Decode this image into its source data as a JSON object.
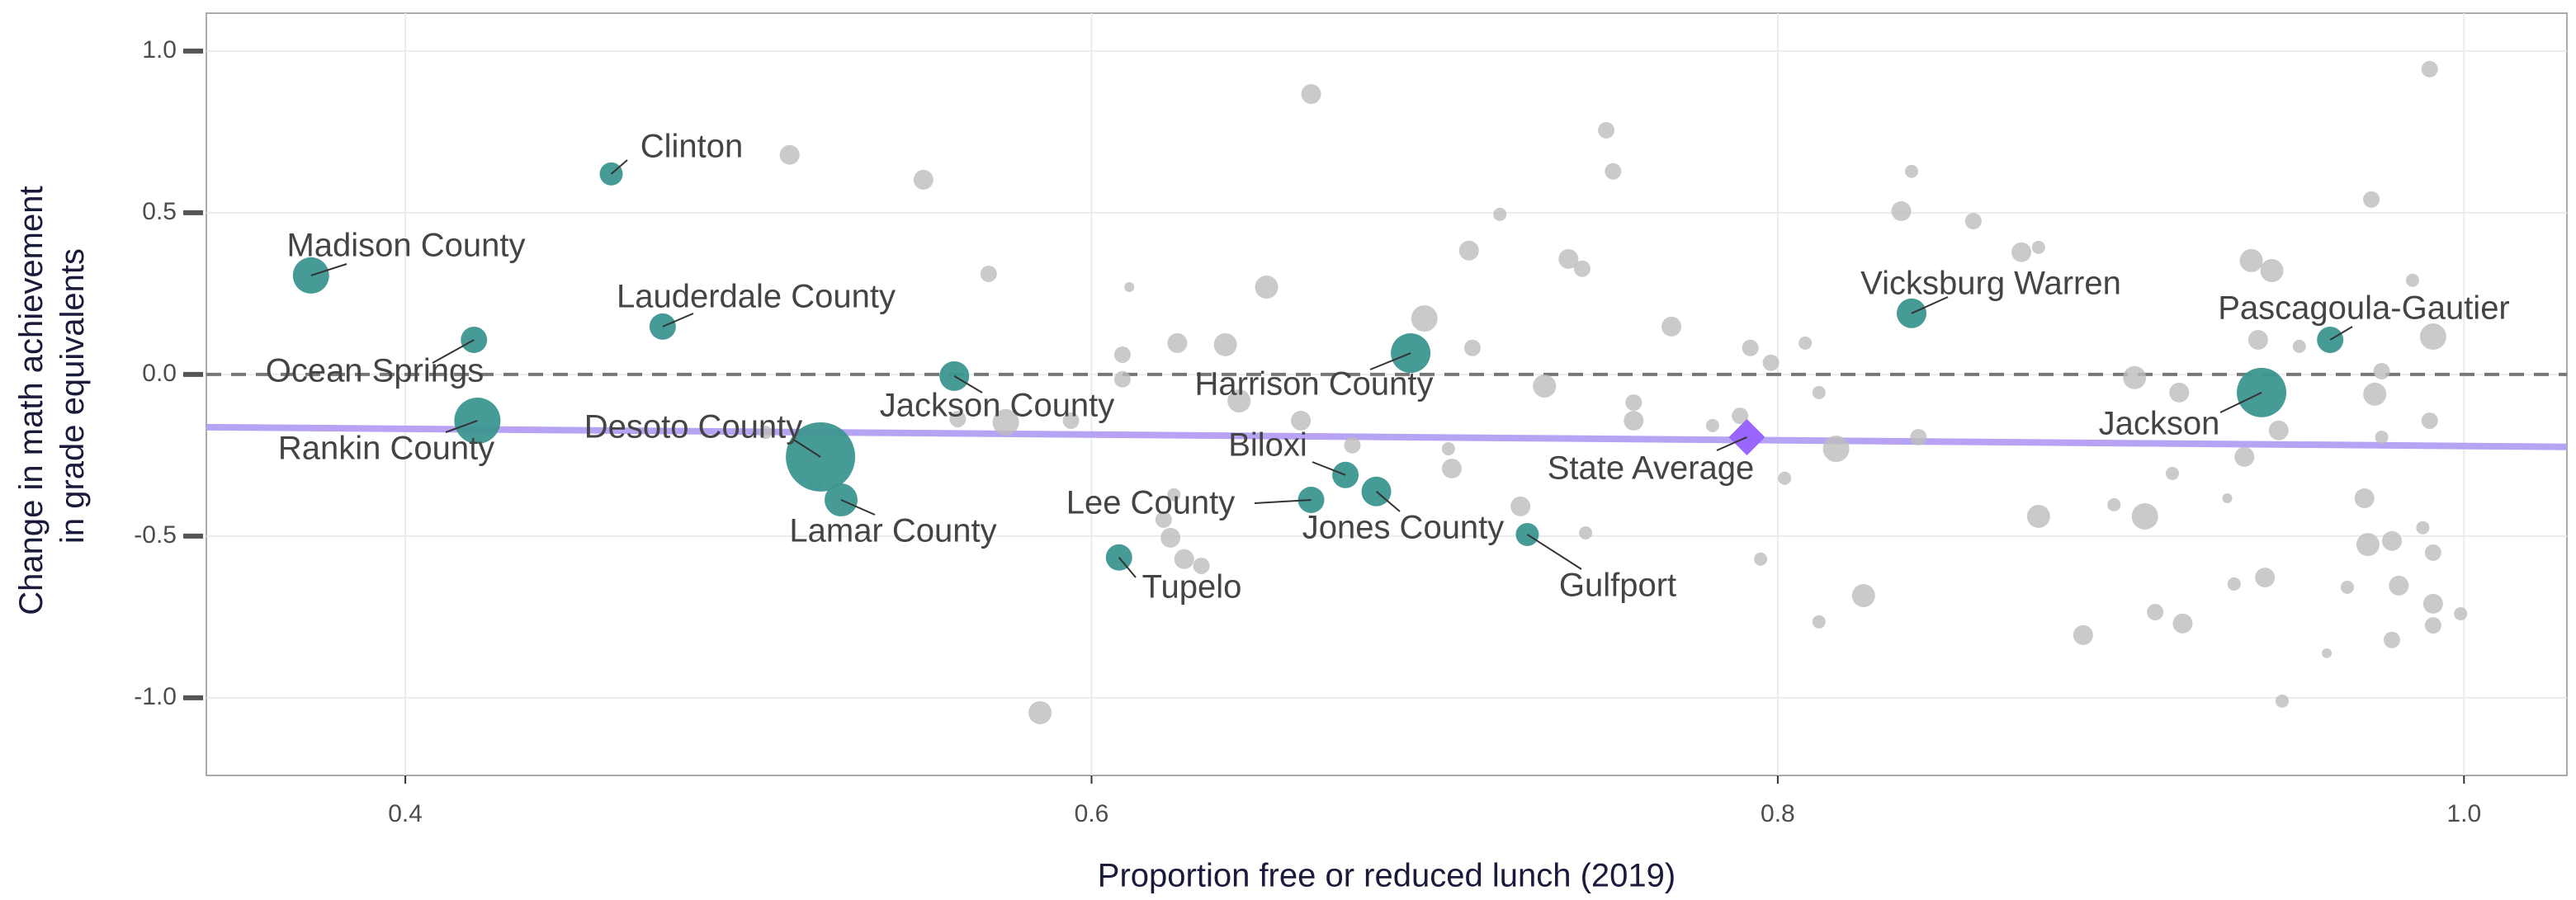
{
  "chart_data": {
    "type": "scatter",
    "xlabel": "Proportion free or reduced lunch (2019)",
    "ylabel": [
      "Change in math achievement",
      "in grade equivalents"
    ],
    "xlim": [
      0.342,
      1.03
    ],
    "ylim": [
      -1.24,
      1.117
    ],
    "xticks": [
      0.4,
      0.6,
      0.8,
      {
        "value": 1.0,
        "label": "1.0"
      }
    ],
    "yticks": [
      {
        "value": 1.0,
        "label": "1.0"
      },
      0.5,
      {
        "value": 0.0,
        "label": "0.0"
      },
      -0.5,
      {
        "value": -1.0,
        "label": "-1.0"
      }
    ],
    "grid": true,
    "reference_line": 0,
    "trend": {
      "color": "#b7a3f3",
      "x": [
        0.342,
        1.03
      ],
      "y": [
        -0.163,
        -0.224
      ]
    },
    "series": [
      {
        "color": "#bdbdbd",
        "x": [
          0.664,
          0.512,
          0.551,
          0.75,
          0.752,
          0.719,
          0.71,
          0.739,
          0.743,
          0.57,
          0.611,
          0.651,
          0.697,
          0.711,
          0.769,
          0.792,
          0.798,
          0.808,
          0.836,
          0.839,
          0.857,
          0.871,
          0.876,
          0.938,
          0.944,
          0.973,
          0.99,
          0.985,
          0.991,
          0.94,
          0.952,
          0.904,
          0.917,
          0.976,
          0.974,
          0.99,
          0.976,
          0.946,
          0.936,
          0.915,
          0.931,
          0.907,
          0.898,
          0.876,
          0.971,
          0.972,
          0.979,
          0.991,
          0.988,
          0.966,
          0.981,
          0.991,
          0.991,
          0.999,
          0.979,
          0.942,
          0.933,
          0.96,
          0.947,
          0.91,
          0.918,
          0.889,
          0.825,
          0.812,
          0.795,
          0.841,
          0.817,
          0.812,
          0.789,
          0.802,
          0.781,
          0.758,
          0.758,
          0.732,
          0.705,
          0.704,
          0.725,
          0.744,
          0.676,
          0.661,
          0.643,
          0.639,
          0.625,
          0.609,
          0.609,
          0.575,
          0.594,
          0.561,
          0.621,
          0.623,
          0.627,
          0.632,
          0.624,
          0.585,
          0.52,
          0.505
        ],
        "y": [
          0.867,
          0.679,
          0.602,
          0.755,
          0.628,
          0.495,
          0.383,
          0.357,
          0.327,
          0.311,
          0.27,
          0.27,
          0.173,
          0.082,
          0.148,
          0.082,
          0.036,
          0.097,
          0.505,
          0.628,
          0.474,
          0.378,
          0.393,
          0.352,
          0.321,
          0.541,
          0.944,
          0.291,
          0.117,
          0.107,
          0.087,
          -0.01,
          -0.056,
          0.01,
          -0.061,
          -0.143,
          -0.194,
          -0.173,
          -0.255,
          -0.306,
          -0.383,
          -0.439,
          -0.403,
          -0.439,
          -0.383,
          -0.526,
          -0.515,
          -0.551,
          -0.474,
          -0.658,
          -0.653,
          -0.709,
          -0.776,
          -0.74,
          -0.821,
          -0.628,
          -0.648,
          -0.862,
          -1.01,
          -0.735,
          -0.77,
          -0.806,
          -0.684,
          -0.765,
          -0.571,
          -0.194,
          -0.23,
          -0.056,
          -0.128,
          -0.321,
          -0.158,
          -0.087,
          -0.143,
          -0.036,
          -0.291,
          -0.23,
          -0.408,
          -0.49,
          -0.219,
          -0.143,
          -0.082,
          0.092,
          0.097,
          0.061,
          -0.015,
          -0.148,
          -0.143,
          -0.138,
          -0.449,
          -0.505,
          -0.571,
          -0.592,
          -0.372,
          -1.046,
          -0.337,
          -0.179
        ],
        "sizes": [
          6,
          6,
          6,
          5,
          5,
          4,
          6,
          6,
          5,
          5,
          3,
          7,
          8,
          5,
          6,
          5,
          5,
          4,
          6,
          4,
          5,
          6,
          4,
          7,
          7,
          5,
          5,
          4,
          8,
          6,
          4,
          7,
          6,
          5,
          7,
          5,
          4,
          6,
          6,
          4,
          3,
          8,
          4,
          7,
          6,
          7,
          6,
          5,
          4,
          4,
          6,
          6,
          5,
          4,
          5,
          6,
          4,
          3,
          4,
          5,
          6,
          6,
          7,
          4,
          4,
          5,
          8,
          4,
          5,
          4,
          4,
          5,
          6,
          7,
          6,
          4,
          6,
          4,
          5,
          6,
          7,
          7,
          6,
          5,
          5,
          8,
          5,
          5,
          5,
          6,
          6,
          5,
          4,
          7,
          4,
          4
        ]
      },
      {
        "color": "#3d9690",
        "labels": [
          "Madison County",
          "Clinton",
          "Ocean Springs",
          "Rankin County",
          "Lauderdale County",
          "Desoto County",
          "Lamar County",
          "Jackson County",
          "Tupelo",
          "Lee County",
          "Biloxi",
          "Jones County",
          "Harrison County",
          "Gulfport",
          "Vicksburg Warren",
          "Pascagoula-Gautier",
          "Jackson"
        ],
        "x": [
          0.3725,
          0.46,
          0.42,
          0.421,
          0.475,
          0.521,
          0.527,
          0.56,
          0.608,
          0.664,
          0.674,
          0.683,
          0.693,
          0.727,
          0.839,
          0.961,
          0.941
        ],
        "y": [
          0.306,
          0.62,
          0.107,
          -0.143,
          0.148,
          -0.255,
          -0.388,
          -0.005,
          -0.566,
          -0.388,
          -0.311,
          -0.362,
          0.066,
          -0.495,
          0.189,
          0.107,
          -0.056
        ],
        "sizes": [
          11,
          7,
          8,
          14,
          8,
          21,
          10,
          9,
          8,
          8,
          8,
          9,
          12,
          7,
          9,
          8,
          15
        ]
      },
      {
        "color": "#9966ff",
        "marker": "diamond",
        "labels": [
          "State Average"
        ],
        "x": [
          0.791
        ],
        "y": [
          -0.194
        ],
        "sizes": [
          11
        ]
      }
    ]
  }
}
